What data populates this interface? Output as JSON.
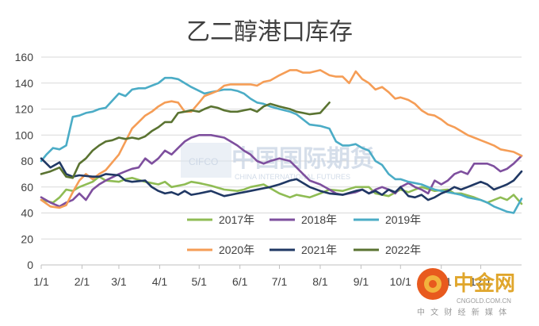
{
  "chart_data": {
    "type": "line",
    "title": "乙二醇港口库存",
    "ylim": [
      0,
      160
    ],
    "yticks": [
      0,
      20,
      40,
      60,
      80,
      100,
      120,
      140,
      160
    ],
    "xlim": [
      1,
      366
    ],
    "xticks": [
      {
        "label": "1/1",
        "day": 1
      },
      {
        "label": "2/1",
        "day": 32
      },
      {
        "label": "3/1",
        "day": 60
      },
      {
        "label": "4/1",
        "day": 91
      },
      {
        "label": "5/1",
        "day": 121
      },
      {
        "label": "6/1",
        "day": 152
      },
      {
        "label": "7/1",
        "day": 182
      },
      {
        "label": "8/1",
        "day": 213
      },
      {
        "label": "9/1",
        "day": 244
      },
      {
        "label": "10/1",
        "day": 274
      },
      {
        "label": "11/1",
        "day": 305
      },
      {
        "label": "12/1",
        "day": 335
      }
    ],
    "grid": true,
    "legend_position": "bottom-center",
    "series": [
      {
        "name": "2017年",
        "color": "#8fbc54",
        "x": [
          1,
          10,
          15,
          20,
          25,
          30,
          40,
          45,
          50,
          60,
          65,
          70,
          80,
          85,
          90,
          95,
          100,
          110,
          115,
          121,
          130,
          140,
          150,
          155,
          160,
          170,
          182,
          190,
          195,
          205,
          213,
          220,
          230,
          240,
          250,
          255,
          265,
          274,
          280,
          290,
          300,
          310,
          315,
          320,
          330,
          340,
          350,
          355,
          360,
          366
        ],
        "y": [
          50,
          48,
          52,
          58,
          57,
          60,
          64,
          68,
          65,
          64,
          66,
          67,
          64,
          63,
          62,
          64,
          60,
          62,
          64,
          63,
          61,
          58,
          57,
          58,
          60,
          62,
          55,
          52,
          54,
          52,
          55,
          58,
          57,
          60,
          60,
          55,
          53,
          58,
          56,
          60,
          57,
          58,
          55,
          55,
          52,
          48,
          52,
          50,
          54,
          47
        ]
      },
      {
        "name": "2018年",
        "color": "#7e4f9e",
        "x": [
          1,
          8,
          15,
          20,
          25,
          30,
          35,
          40,
          45,
          50,
          60,
          65,
          70,
          75,
          80,
          85,
          90,
          95,
          100,
          105,
          110,
          115,
          121,
          130,
          140,
          145,
          150,
          155,
          160,
          165,
          170,
          175,
          182,
          190,
          195,
          200,
          205,
          213,
          220,
          225,
          230,
          235,
          240,
          245,
          250,
          255,
          260,
          265,
          270,
          274,
          280,
          285,
          290,
          295,
          300,
          305,
          310,
          315,
          320,
          325,
          330,
          340,
          345,
          350,
          355,
          360,
          366
        ],
        "y": [
          52,
          48,
          45,
          48,
          50,
          55,
          50,
          58,
          62,
          65,
          70,
          72,
          74,
          75,
          82,
          78,
          82,
          88,
          85,
          90,
          95,
          98,
          100,
          100,
          98,
          95,
          92,
          88,
          85,
          80,
          78,
          80,
          82,
          80,
          75,
          70,
          65,
          62,
          58,
          55,
          54,
          55,
          56,
          58,
          55,
          58,
          60,
          58,
          55,
          60,
          63,
          60,
          58,
          55,
          65,
          62,
          65,
          70,
          72,
          70,
          78,
          78,
          76,
          72,
          74,
          78,
          84
        ]
      },
      {
        "name": "2019年",
        "color": "#4bacc6",
        "x": [
          1,
          5,
          10,
          15,
          20,
          25,
          30,
          35,
          40,
          45,
          50,
          60,
          65,
          70,
          75,
          80,
          85,
          90,
          95,
          100,
          105,
          110,
          115,
          121,
          125,
          130,
          135,
          140,
          145,
          150,
          155,
          160,
          165,
          170,
          175,
          182,
          190,
          195,
          200,
          205,
          213,
          220,
          225,
          230,
          235,
          240,
          245,
          250,
          255,
          260,
          265,
          270,
          274,
          280,
          285,
          290,
          295,
          300,
          305,
          310,
          315,
          320,
          325,
          330,
          335,
          340,
          345,
          350,
          355,
          360,
          366
        ],
        "y": [
          80,
          85,
          90,
          89,
          92,
          114,
          115,
          117,
          118,
          120,
          121,
          132,
          130,
          135,
          136,
          136,
          138,
          140,
          144,
          144,
          143,
          140,
          137,
          134,
          132,
          133,
          134,
          135,
          135,
          134,
          132,
          128,
          125,
          124,
          122,
          120,
          118,
          116,
          112,
          108,
          107,
          105,
          95,
          92,
          92,
          93,
          90,
          88,
          80,
          77,
          70,
          66,
          66,
          64,
          63,
          62,
          60,
          58,
          57,
          56,
          55,
          54,
          52,
          51,
          50,
          48,
          45,
          43,
          41,
          40,
          51
        ]
      },
      {
        "name": "2020年",
        "color": "#f59d56",
        "x": [
          1,
          8,
          15,
          20,
          25,
          30,
          35,
          40,
          45,
          50,
          60,
          65,
          70,
          75,
          80,
          85,
          90,
          95,
          100,
          105,
          110,
          115,
          121,
          125,
          130,
          135,
          140,
          145,
          150,
          155,
          160,
          165,
          170,
          175,
          182,
          190,
          195,
          200,
          205,
          213,
          220,
          225,
          230,
          235,
          240,
          245,
          250,
          255,
          260,
          265,
          270,
          274,
          280,
          285,
          290,
          295,
          300,
          305,
          310,
          315,
          320,
          325,
          330,
          335,
          340,
          345,
          350,
          355,
          360,
          366
        ],
        "y": [
          50,
          45,
          44,
          46,
          56,
          65,
          70,
          66,
          70,
          73,
          85,
          95,
          105,
          110,
          115,
          118,
          122,
          125,
          126,
          125,
          118,
          118,
          125,
          130,
          132,
          134,
          138,
          139,
          139,
          139,
          139,
          138,
          141,
          142,
          146,
          150,
          150,
          148,
          148,
          150,
          146,
          145,
          145,
          140,
          149,
          143,
          140,
          135,
          137,
          133,
          128,
          129,
          127,
          124,
          119,
          116,
          115,
          112,
          108,
          106,
          103,
          100,
          98,
          96,
          94,
          92,
          89,
          88,
          87,
          84
        ]
      },
      {
        "name": "2021年",
        "color": "#203864",
        "x": [
          1,
          8,
          15,
          20,
          25,
          30,
          40,
          45,
          50,
          60,
          65,
          70,
          80,
          85,
          90,
          95,
          100,
          105,
          110,
          115,
          121,
          130,
          140,
          145,
          150,
          155,
          160,
          170,
          175,
          182,
          190,
          195,
          200,
          205,
          213,
          220,
          230,
          240,
          245,
          250,
          255,
          260,
          265,
          270,
          274,
          280,
          285,
          290,
          295,
          300,
          305,
          310,
          315,
          320,
          325,
          330,
          335,
          340,
          345,
          350,
          355,
          360,
          366
        ],
        "y": [
          82,
          75,
          79,
          70,
          68,
          69,
          68,
          68,
          70,
          69,
          65,
          64,
          65,
          60,
          57,
          55,
          56,
          54,
          57,
          54,
          55,
          57,
          53,
          54,
          55,
          56,
          57,
          59,
          60,
          62,
          65,
          66,
          63,
          60,
          57,
          55,
          54,
          57,
          58,
          55,
          57,
          54,
          58,
          56,
          60,
          53,
          52,
          54,
          50,
          52,
          55,
          57,
          60,
          58,
          60,
          62,
          64,
          62,
          58,
          60,
          62,
          65,
          72
        ]
      },
      {
        "name": "2022年",
        "color": "#5a7331",
        "x": [
          1,
          8,
          15,
          20,
          25,
          30,
          35,
          40,
          45,
          50,
          55,
          60,
          65,
          70,
          75,
          80,
          85,
          90,
          95,
          100,
          105,
          110,
          115,
          121,
          125,
          130,
          135,
          140,
          145,
          150,
          155,
          160,
          165,
          170,
          175,
          182,
          190,
          195,
          200,
          205,
          213,
          220
        ],
        "y": [
          70,
          72,
          75,
          68,
          67,
          78,
          82,
          88,
          92,
          95,
          96,
          98,
          97,
          98,
          97,
          99,
          103,
          106,
          110,
          110,
          117,
          118,
          119,
          118,
          120,
          122,
          121,
          119,
          118,
          118,
          119,
          120,
          118,
          122,
          124,
          122,
          120,
          118,
          117,
          116,
          117,
          125
        ]
      }
    ]
  },
  "watermarks": {
    "cifco_big": "中国国际期货",
    "cifco_latin": "CIFCO",
    "cifco_sub": "CHINA INTERNATIONAL FUTURES",
    "brand": "中金网",
    "brand_url": "CNGOLD.COM.CN",
    "brand_slogan": "中 文 财 经 新 媒 体"
  }
}
